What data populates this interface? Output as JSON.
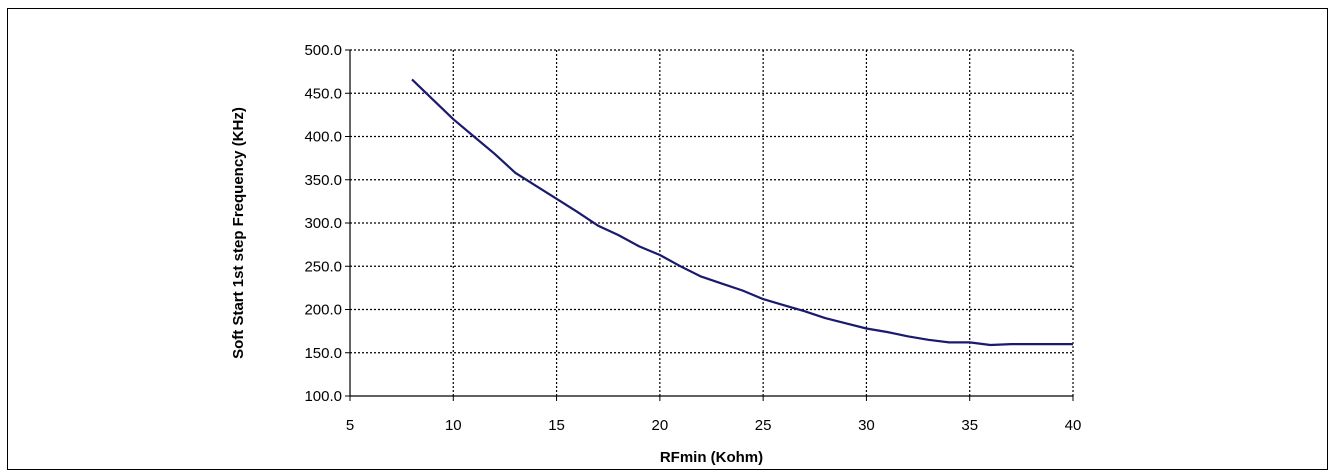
{
  "chart_data": {
    "type": "line",
    "xlabel": "RFmin (Kohm)",
    "ylabel": "Soft Start 1st step Frequency (KHz)",
    "xlim": [
      5,
      40
    ],
    "ylim": [
      100.0,
      500.0
    ],
    "x_ticks": [
      "5",
      "10",
      "15",
      "20",
      "25",
      "30",
      "35",
      "40"
    ],
    "y_ticks": [
      "100.0",
      "150.0",
      "200.0",
      "250.0",
      "300.0",
      "350.0",
      "400.0",
      "450.0",
      "500.0"
    ],
    "grid": true,
    "grid_style": "dotted",
    "line_color": "#1a1a6e",
    "series": [
      {
        "x": [
          8,
          9,
          10,
          11,
          12,
          13,
          14,
          15,
          16,
          17,
          18,
          19,
          20,
          21,
          22,
          23,
          24,
          25,
          26,
          27,
          28,
          29,
          30,
          31,
          32,
          33,
          34,
          35,
          36,
          37,
          38,
          39,
          40
        ],
        "values": [
          466,
          443,
          420,
          400,
          380,
          358,
          343,
          328,
          313,
          297,
          286,
          273,
          263,
          250,
          238,
          230,
          222,
          212,
          205,
          198,
          190,
          184,
          178,
          174,
          169,
          165,
          162,
          162,
          159,
          160,
          160,
          160,
          160
        ]
      }
    ]
  }
}
